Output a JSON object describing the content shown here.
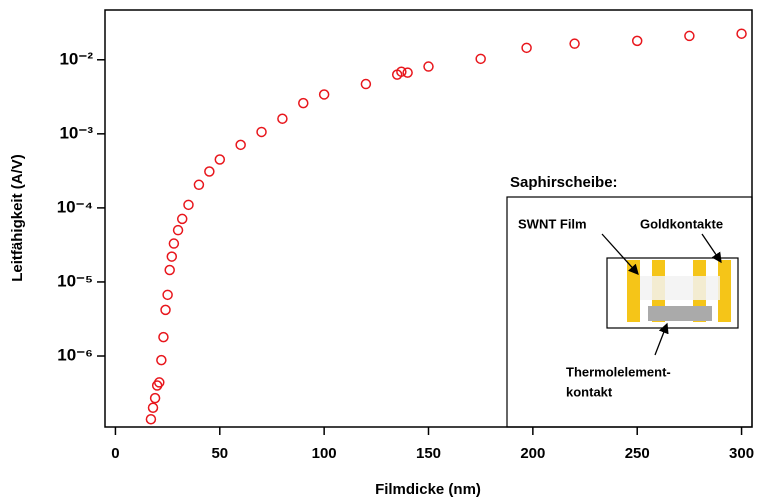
{
  "chart_data": {
    "type": "scatter",
    "xlabel": "Filmdicke (nm)",
    "ylabel": "Leitfähigkeit (A/V)",
    "x": [
      17,
      18,
      19,
      20,
      21,
      22,
      23,
      24,
      25,
      26,
      27,
      28,
      30,
      32,
      35,
      40,
      45,
      50,
      60,
      70,
      80,
      90,
      100,
      120,
      135,
      137,
      140,
      150,
      175,
      197,
      220,
      250,
      275,
      300
    ],
    "series": [
      {
        "color": "#e8161c",
        "values": [
          1.4e-07,
          2e-07,
          2.7e-07,
          4e-07,
          4.4e-07,
          8.8e-07,
          1.8e-06,
          4.2e-06,
          6.7e-06,
          1.45e-05,
          2.2e-05,
          3.3e-05,
          5e-05,
          7.1e-05,
          0.00011,
          0.000205,
          0.00031,
          0.00045,
          0.00071,
          0.00106,
          0.0016,
          0.0026,
          0.0034,
          0.0047,
          0.0063,
          0.0069,
          0.0067,
          0.0081,
          0.0103,
          0.0145,
          0.0165,
          0.018,
          0.021,
          0.0225
        ]
      }
    ],
    "xlim": [
      -5,
      305
    ],
    "xticks": [
      0,
      50,
      100,
      150,
      200,
      250,
      300
    ],
    "ylim": [
      1.1e-07,
      0.047
    ],
    "log_y": true,
    "yticks": [
      {
        "value": 1e-06,
        "label": "10⁻⁶"
      },
      {
        "value": 1e-05,
        "label": "10⁻⁵"
      },
      {
        "value": 0.0001,
        "label": "10⁻⁴"
      },
      {
        "value": 0.001,
        "label": "10⁻³"
      },
      {
        "value": 0.01,
        "label": "10⁻²"
      }
    ],
    "annotations": [
      "Saphirscheibe:",
      "SWNT Film",
      "Goldkontakte",
      "Thermolelement-",
      "kontakt"
    ]
  }
}
